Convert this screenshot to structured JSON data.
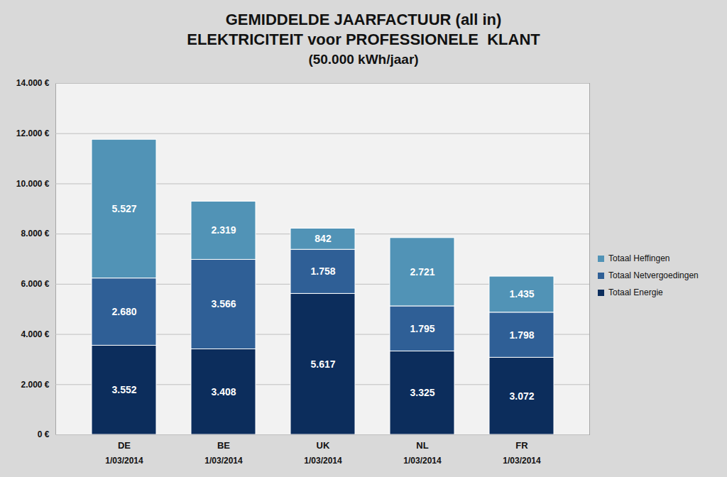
{
  "chart_data": {
    "type": "bar",
    "stacked": true,
    "title": "GEMIDDELDE JAARFACTUUR (all in)",
    "subtitle": [
      "ELEKTRICITEIT voor PROFESSIONELE  KLANT",
      "(50.000 kWh/jaar)"
    ],
    "categories": [
      "DE",
      "BE",
      "UK",
      "NL",
      "FR"
    ],
    "dates": [
      "1/03/2014",
      "1/03/2014",
      "1/03/2014",
      "1/03/2014",
      "1/03/2014"
    ],
    "series": [
      {
        "name": "Totaal Energie",
        "color": "#0c2d5c",
        "values": [
          3552,
          3408,
          5617,
          3325,
          3072
        ],
        "value_labels": [
          "3.552",
          "3.408",
          "5.617",
          "3.325",
          "3.072"
        ]
      },
      {
        "name": "Totaal Netvergoedingen",
        "color": "#2f5f96",
        "values": [
          2680,
          3566,
          1758,
          1795,
          1798
        ],
        "value_labels": [
          "2.680",
          "3.566",
          "1.758",
          "1.795",
          "1.798"
        ]
      },
      {
        "name": "Totaal Heffingen",
        "color": "#5193b6",
        "values": [
          5527,
          2319,
          842,
          2721,
          1435
        ],
        "value_labels": [
          "5.527",
          "2.319",
          "842",
          "2.721",
          "1.435"
        ]
      }
    ],
    "ylim": [
      0,
      14000
    ],
    "yticks": [
      {
        "value": 0,
        "label": "0 €"
      },
      {
        "value": 2000,
        "label": "2.000 €"
      },
      {
        "value": 4000,
        "label": "4.000 €"
      },
      {
        "value": 6000,
        "label": "6.000 €"
      },
      {
        "value": 8000,
        "label": "8.000 €"
      },
      {
        "value": 10000,
        "label": "10.000 €"
      },
      {
        "value": 12000,
        "label": "12.000 €"
      },
      {
        "value": 14000,
        "label": "14.000 €"
      }
    ],
    "grid": true,
    "data_labels": true,
    "legend": "right"
  }
}
